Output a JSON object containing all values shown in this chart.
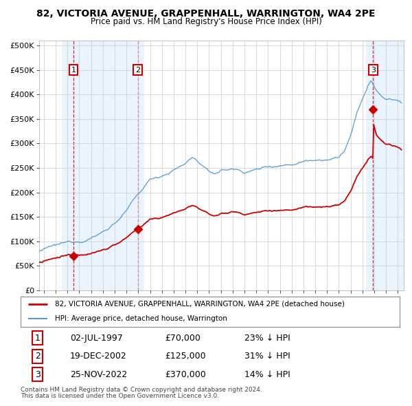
{
  "title1": "82, VICTORIA AVENUE, GRAPPENHALL, WARRINGTON, WA4 2PE",
  "title2": "Price paid vs. HM Land Registry's House Price Index (HPI)",
  "legend_line1": "82, VICTORIA AVENUE, GRAPPENHALL, WARRINGTON, WA4 2PE (detached house)",
  "legend_line2": "HPI: Average price, detached house, Warrington",
  "sale1_label": "1",
  "sale1_date": "02-JUL-1997",
  "sale1_price": "£70,000",
  "sale1_hpi": "23% ↓ HPI",
  "sale1_year": 1997.5,
  "sale1_value": 70000,
  "sale2_label": "2",
  "sale2_date": "19-DEC-2002",
  "sale2_price": "£125,000",
  "sale2_hpi": "31% ↓ HPI",
  "sale2_year": 2002.97,
  "sale2_value": 125000,
  "sale3_label": "3",
  "sale3_date": "25-NOV-2022",
  "sale3_price": "£370,000",
  "sale3_hpi": "14% ↓ HPI",
  "sale3_year": 2022.9,
  "sale3_value": 370000,
  "footnote1": "Contains HM Land Registry data © Crown copyright and database right 2024.",
  "footnote2": "This data is licensed under the Open Government Licence v3.0.",
  "xlim_min": 1994.6,
  "xlim_max": 2025.5,
  "ylim_min": 0,
  "ylim_max": 510000,
  "yticks": [
    0,
    50000,
    100000,
    150000,
    200000,
    250000,
    300000,
    350000,
    400000,
    450000,
    500000
  ],
  "ytick_labels": [
    "£0",
    "£50K",
    "£100K",
    "£150K",
    "£200K",
    "£250K",
    "£300K",
    "£350K",
    "£400K",
    "£450K",
    "£500K"
  ],
  "line_color_red": "#cc0000",
  "line_color_blue": "#5599cc",
  "shade_color": "#ddeeff",
  "grid_color": "#cccccc",
  "bg_color": "#ffffff"
}
